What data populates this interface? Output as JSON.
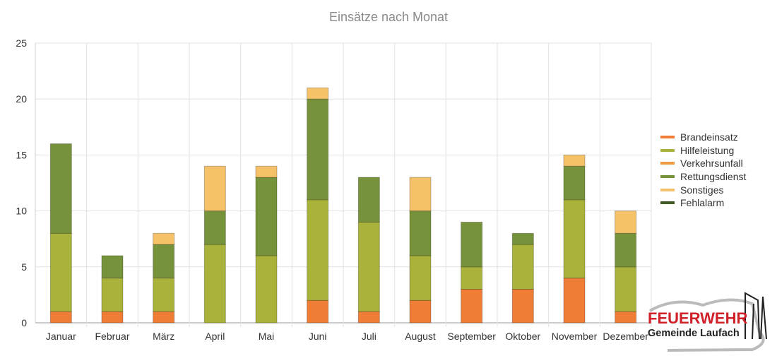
{
  "chart_data": {
    "type": "bar",
    "stacked": true,
    "title": "Einsätze nach Monat",
    "xlabel": "",
    "ylabel": "",
    "ylim": [
      0,
      25
    ],
    "yticks": [
      0,
      5,
      10,
      15,
      20,
      25
    ],
    "grid": true,
    "legend_position": "right",
    "categories": [
      "Januar",
      "Februar",
      "März",
      "April",
      "Mai",
      "Juni",
      "Juli",
      "August",
      "September",
      "Oktober",
      "November",
      "Dezember"
    ],
    "series": [
      {
        "name": "Brandeinsatz",
        "color": "#ef7d35",
        "values": [
          1,
          1,
          1,
          0,
          0,
          2,
          1,
          2,
          3,
          3,
          4,
          1
        ]
      },
      {
        "name": "Hilfeleistung",
        "color": "#a9b23a",
        "values": [
          7,
          3,
          3,
          7,
          6,
          9,
          8,
          4,
          2,
          4,
          7,
          4
        ]
      },
      {
        "name": "Verkehrsunfall",
        "color": "#ee9a45",
        "values": [
          0,
          0,
          0,
          0,
          0,
          0,
          0,
          0,
          0,
          0,
          0,
          0
        ]
      },
      {
        "name": "Rettungsdienst",
        "color": "#76923a",
        "values": [
          8,
          2,
          3,
          3,
          7,
          9,
          4,
          4,
          4,
          1,
          3,
          3
        ]
      },
      {
        "name": "Sonstiges",
        "color": "#f5c26a",
        "values": [
          0,
          0,
          1,
          4,
          1,
          1,
          0,
          3,
          0,
          0,
          1,
          2
        ]
      },
      {
        "name": "Fehlalarm",
        "color": "#3f5a22",
        "values": [
          0,
          0,
          0,
          0,
          0,
          0,
          0,
          0,
          0,
          0,
          0,
          0
        ]
      }
    ]
  },
  "logo": {
    "line1": "FEUERWEHR",
    "line2": "Gemeinde Laufach"
  }
}
